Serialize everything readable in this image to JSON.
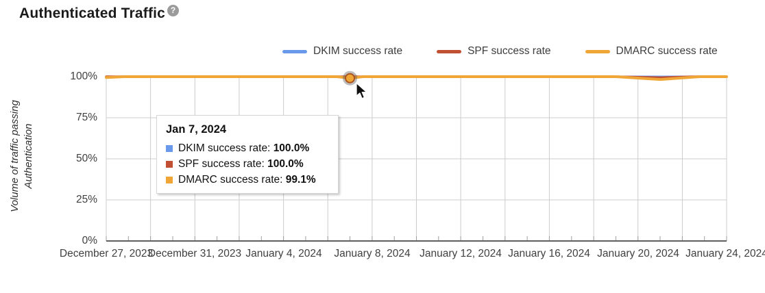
{
  "header": {
    "title": "Authenticated Traffic",
    "help_icon_glyph": "?"
  },
  "legend": {
    "items": [
      {
        "id": "dkim",
        "label": "DKIM success rate",
        "color": "#6A99EC"
      },
      {
        "id": "spf",
        "label": "SPF success rate",
        "color": "#C14F32"
      },
      {
        "id": "dmarc",
        "label": "DMARC success rate",
        "color": "#F0A636"
      }
    ]
  },
  "tooltip": {
    "date": "Jan 7, 2024",
    "rows": [
      {
        "label": "DKIM success rate: ",
        "value": "100.0%",
        "color": "#6A99EC"
      },
      {
        "label": "SPF success rate: ",
        "value": "100.0%",
        "color": "#C14F32"
      },
      {
        "label": "DMARC success rate: ",
        "value": "99.1%",
        "color": "#F0A636"
      }
    ]
  },
  "chart_data": {
    "type": "line",
    "title": "Authenticated Traffic",
    "ylabel": "Volume of traffic passing Authentication",
    "ylabel_lines": [
      "Volume of traffic passing",
      "Authentication"
    ],
    "ylim": [
      0,
      100
    ],
    "y_tick_labels": [
      "100%",
      "75%",
      "50%",
      "25%",
      "0%"
    ],
    "x_tick_labels": [
      "December 27, 2023",
      "December 31, 2023",
      "January 4, 2024",
      "January 8, 2024",
      "January 12, 2024",
      "January 16, 2024",
      "January 20, 2024",
      "January 24, 2024"
    ],
    "x_range_days": 28,
    "grid": true,
    "legend_position": "top",
    "series": [
      {
        "name": "DKIM success rate",
        "color": "#6A99EC",
        "points": [
          [
            0,
            100
          ],
          [
            11,
            100
          ],
          [
            28,
            100
          ]
        ]
      },
      {
        "name": "SPF success rate",
        "color": "#C14F32",
        "points": [
          [
            0,
            100
          ],
          [
            11,
            100
          ],
          [
            23,
            100
          ],
          [
            25,
            99.4
          ],
          [
            26.5,
            100
          ],
          [
            28,
            100
          ]
        ]
      },
      {
        "name": "DMARC success rate",
        "color": "#F0A636",
        "points": [
          [
            0,
            99.5
          ],
          [
            0.8,
            100
          ],
          [
            10.4,
            100
          ],
          [
            11,
            99.1
          ],
          [
            11.6,
            100
          ],
          [
            23,
            100
          ],
          [
            25,
            98.3
          ],
          [
            26.8,
            100
          ],
          [
            28,
            100
          ]
        ]
      }
    ],
    "highlighted_point": {
      "series": "DMARC success rate",
      "date": "Jan 7, 2024",
      "x_day": 11,
      "value": 99.1
    }
  }
}
